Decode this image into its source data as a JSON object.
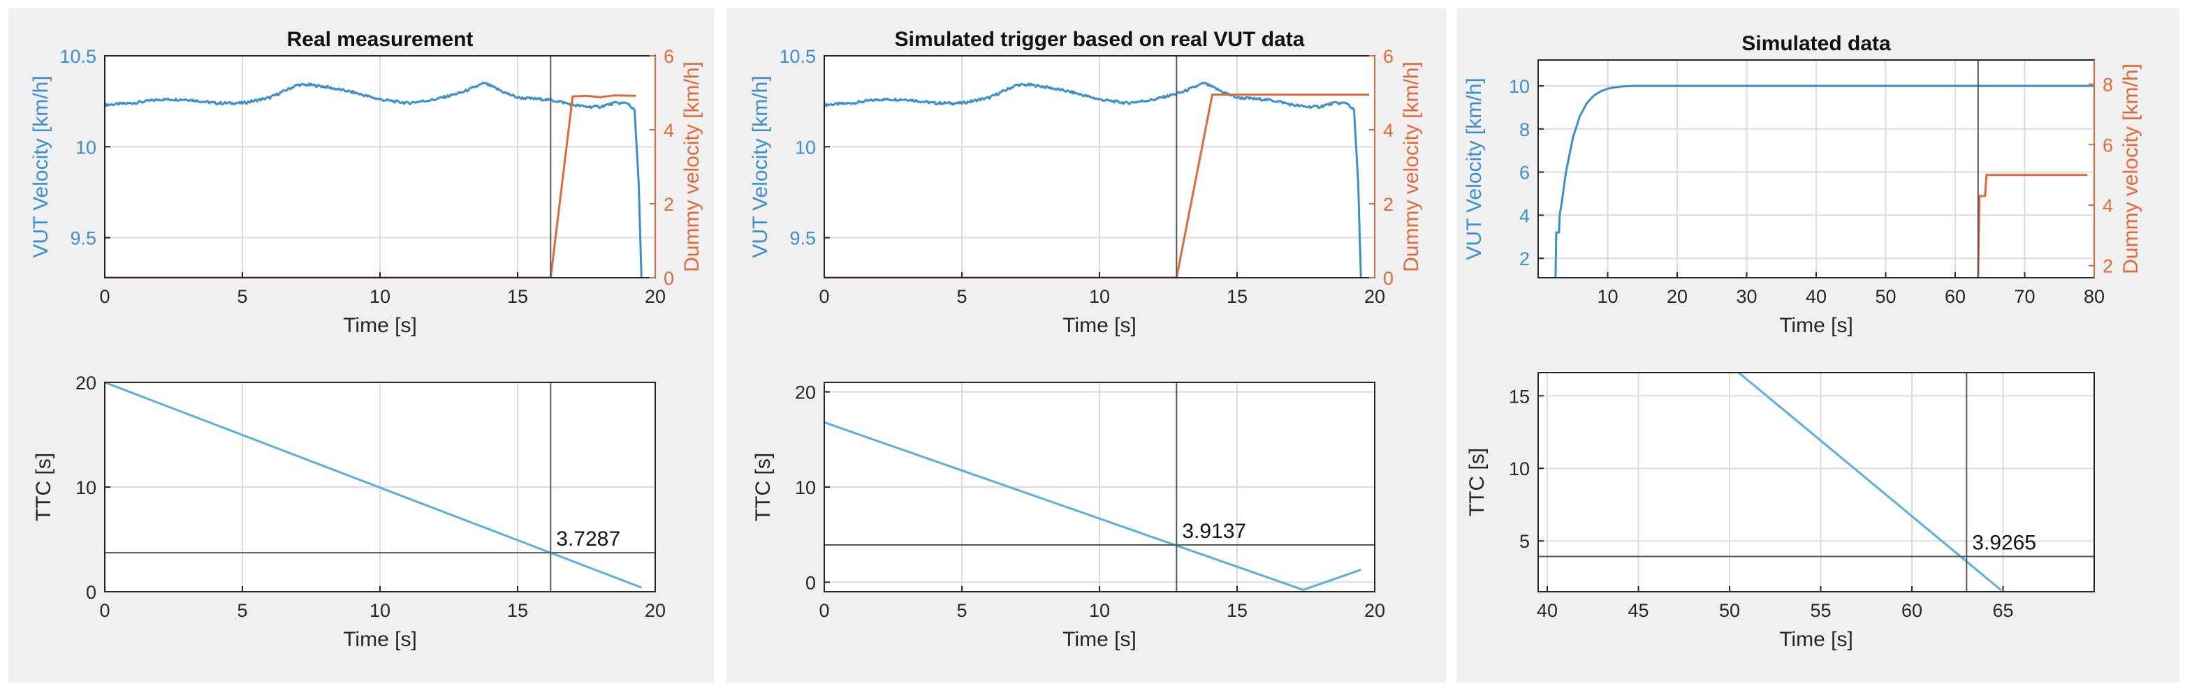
{
  "figure": {
    "colors": {
      "vut": "#3b8fcc",
      "dummy": "#e0693a",
      "ttc": "#5aaee0",
      "marker": "#555555",
      "grid": "#dcdcdc",
      "axis": "#262626",
      "panel_bg": "#f0f0f0"
    }
  },
  "chart_data": [
    {
      "id": "real-velocity",
      "type": "line",
      "title": "Real measurement",
      "xlabel": "Time [s]",
      "ylabel_left": "VUT Velocity [km/h]",
      "ylabel_right": "Dummy velocity [km/h]",
      "xlim": [
        0,
        20
      ],
      "xticks": [
        0,
        5,
        10,
        15,
        20
      ],
      "ylim_left": [
        9.28,
        10.5
      ],
      "yticks_left": [
        9.5,
        10,
        10.5
      ],
      "ytick_labels_left": [
        "9.5",
        "10",
        "10.5"
      ],
      "ylim_right": [
        0,
        6
      ],
      "yticks_right": [
        0,
        2,
        4,
        6
      ],
      "grid": true,
      "marker_x": 16.2,
      "series": [
        {
          "name": "VUT velocity",
          "axis": "left",
          "color_key": "vut",
          "noise": true,
          "x": [
            0,
            1,
            2,
            3,
            4,
            5,
            6,
            7,
            7.5,
            8,
            9,
            10,
            11,
            12,
            13,
            13.8,
            14.5,
            15,
            16,
            16.5,
            17,
            17.5,
            18,
            18.5,
            19,
            19.25,
            19.4,
            19.5
          ],
          "y": [
            10.23,
            10.24,
            10.26,
            10.26,
            10.24,
            10.24,
            10.27,
            10.34,
            10.34,
            10.33,
            10.3,
            10.26,
            10.24,
            10.26,
            10.3,
            10.35,
            10.3,
            10.27,
            10.26,
            10.25,
            10.23,
            10.22,
            10.22,
            10.24,
            10.24,
            10.2,
            9.8,
            9.28
          ]
        },
        {
          "name": "Dummy velocity",
          "axis": "right",
          "color_key": "dummy",
          "noise": false,
          "x": [
            0,
            16.2,
            17.0,
            17.5,
            18.0,
            18.5,
            19.3
          ],
          "y": [
            0,
            0,
            4.9,
            4.92,
            4.88,
            4.93,
            4.92
          ]
        }
      ]
    },
    {
      "id": "real-ttc",
      "type": "line",
      "title": "",
      "xlabel": "Time [s]",
      "ylabel_left": "TTC [s]",
      "xlim": [
        0,
        20
      ],
      "xticks": [
        0,
        5,
        10,
        15,
        20
      ],
      "ylim_left": [
        0,
        20
      ],
      "yticks_left": [
        0,
        10,
        20
      ],
      "ytick_labels_left": [
        "0",
        "10",
        "20"
      ],
      "grid": true,
      "marker_x": 16.2,
      "marker_y": 3.7287,
      "annotation": "3.7287",
      "series": [
        {
          "name": "TTC",
          "axis": "left",
          "color_key": "ttc",
          "noise": false,
          "x": [
            0,
            19.5
          ],
          "y": [
            20,
            0.4
          ]
        }
      ]
    },
    {
      "id": "sim-trigger-velocity",
      "type": "line",
      "title": "Simulated trigger based on real VUT data",
      "xlabel": "Time [s]",
      "ylabel_left": "VUT Velocity [km/h]",
      "ylabel_right": "Dummy velocity [km/h]",
      "xlim": [
        0,
        20
      ],
      "xticks": [
        0,
        5,
        10,
        15,
        20
      ],
      "ylim_left": [
        9.28,
        10.5
      ],
      "yticks_left": [
        9.5,
        10,
        10.5
      ],
      "ytick_labels_left": [
        "9.5",
        "10",
        "10.5"
      ],
      "ylim_right": [
        0,
        6
      ],
      "yticks_right": [
        0,
        2,
        4,
        6
      ],
      "grid": true,
      "marker_x": 12.8,
      "series": [
        {
          "name": "VUT velocity",
          "axis": "left",
          "color_key": "vut",
          "noise": true,
          "x": [
            0,
            1,
            2,
            3,
            4,
            5,
            6,
            7,
            7.5,
            8,
            9,
            10,
            11,
            12,
            13,
            13.8,
            14.5,
            15,
            16,
            16.5,
            17,
            17.5,
            18,
            18.5,
            19,
            19.25,
            19.4,
            19.5
          ],
          "y": [
            10.23,
            10.24,
            10.26,
            10.26,
            10.24,
            10.24,
            10.27,
            10.34,
            10.34,
            10.33,
            10.3,
            10.26,
            10.24,
            10.26,
            10.3,
            10.35,
            10.3,
            10.27,
            10.26,
            10.25,
            10.23,
            10.22,
            10.22,
            10.24,
            10.24,
            10.2,
            9.8,
            9.28
          ]
        },
        {
          "name": "Dummy velocity",
          "axis": "right",
          "color_key": "dummy",
          "noise": false,
          "x": [
            0,
            12.8,
            14.1,
            19.8
          ],
          "y": [
            0,
            0,
            4.95,
            4.95
          ]
        }
      ]
    },
    {
      "id": "sim-trigger-ttc",
      "type": "line",
      "title": "",
      "xlabel": "Time [s]",
      "ylabel_left": "TTC [s]",
      "xlim": [
        0,
        20
      ],
      "xticks": [
        0,
        5,
        10,
        15,
        20
      ],
      "ylim_left": [
        -1,
        21
      ],
      "yticks_left": [
        0,
        10,
        20
      ],
      "ytick_labels_left": [
        "0",
        "10",
        "20"
      ],
      "grid": true,
      "marker_x": 12.8,
      "marker_y": 3.9137,
      "annotation": "3.9137",
      "series": [
        {
          "name": "TTC",
          "axis": "left",
          "color_key": "ttc",
          "noise": false,
          "x": [
            0,
            17.4,
            19.5
          ],
          "y": [
            16.8,
            -0.8,
            1.3
          ]
        }
      ]
    },
    {
      "id": "sim-velocity",
      "type": "line",
      "title": "Simulated data",
      "xlabel": "Time [s]",
      "ylabel_left": "VUT Velocity [km/h]",
      "ylabel_right": "Dummy velocity [km/h]",
      "xlim": [
        0,
        80
      ],
      "xticks": [
        10,
        20,
        30,
        40,
        50,
        60,
        70,
        80
      ],
      "ylim_left": [
        1.1,
        11.2
      ],
      "yticks_left": [
        2,
        4,
        6,
        8,
        10
      ],
      "ytick_labels_left": [
        "2",
        "4",
        "6",
        "8",
        "10"
      ],
      "ylim_right": [
        1.6,
        8.8
      ],
      "yticks_right": [
        2,
        4,
        6,
        8
      ],
      "grid": true,
      "marker_x": 63.3,
      "series": [
        {
          "name": "VUT velocity",
          "axis": "left",
          "color_key": "vut",
          "noise": false,
          "x": [
            2.5,
            2.6,
            3.0,
            3.1,
            3.4,
            4,
            5,
            6,
            7,
            8,
            9,
            10,
            11,
            12,
            13,
            14,
            20,
            40,
            60,
            80
          ],
          "y": [
            1.1,
            3.2,
            3.2,
            4.0,
            4.6,
            6.0,
            7.6,
            8.6,
            9.2,
            9.55,
            9.75,
            9.87,
            9.93,
            9.97,
            9.99,
            10.0,
            10.0,
            10.0,
            10.0,
            10.0
          ]
        },
        {
          "name": "Dummy velocity",
          "axis": "right",
          "color_key": "dummy",
          "noise": false,
          "x": [
            63.3,
            63.5,
            64.3,
            64.5,
            79
          ],
          "y": [
            1.6,
            4.3,
            4.3,
            5.0,
            5.0
          ]
        }
      ]
    },
    {
      "id": "sim-ttc",
      "type": "line",
      "title": "",
      "xlabel": "Time [s]",
      "ylabel_left": "TTC [s]",
      "xlim": [
        39.5,
        70
      ],
      "xticks": [
        40,
        45,
        50,
        55,
        60,
        65
      ],
      "ylim_left": [
        1.5,
        16.6
      ],
      "yticks_left": [
        5,
        10,
        15
      ],
      "ytick_labels_left": [
        "5",
        "10",
        "15"
      ],
      "grid": true,
      "marker_x": 63.0,
      "marker_y": 3.9265,
      "annotation": "3.9265",
      "series": [
        {
          "name": "TTC",
          "axis": "left",
          "color_key": "ttc",
          "noise": false,
          "x": [
            50.5,
            64.9
          ],
          "y": [
            16.6,
            1.6
          ]
        }
      ]
    }
  ]
}
